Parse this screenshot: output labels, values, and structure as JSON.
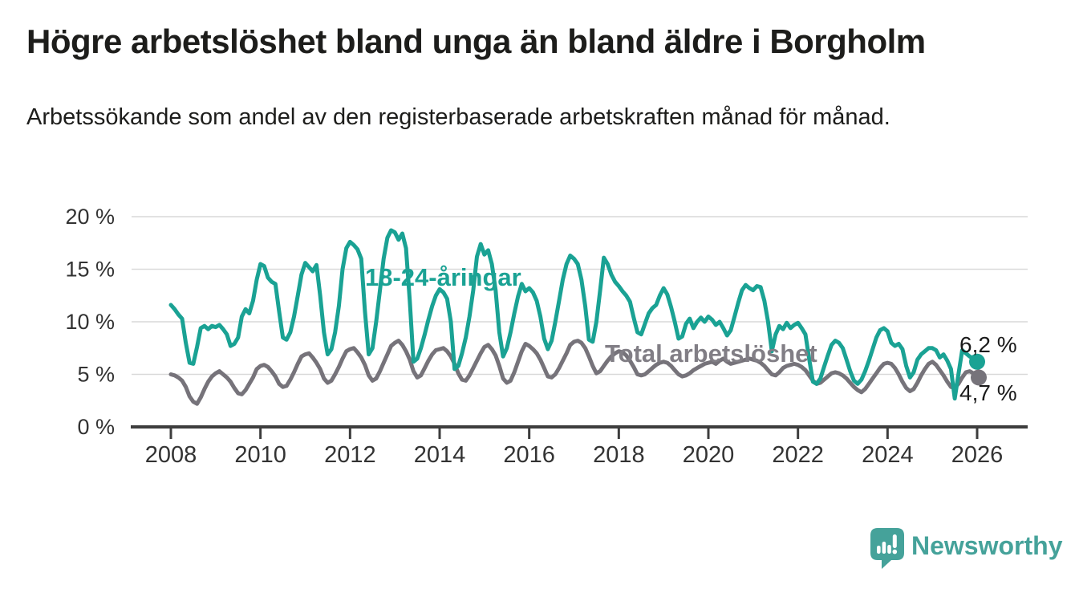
{
  "title": "Högre arbetslöshet bland unga än bland äldre i Borgholm",
  "subtitle": "Arbetssökande som andel av den registerbaserade arbetskraften månad för månad.",
  "logo": {
    "text": "Newsworthy",
    "icon": "bar-chart-speech-bubble-icon",
    "color": "#45a29a"
  },
  "colors": {
    "young_line": "#1aa294",
    "total_line": "#76737a",
    "total_label": "#817e85",
    "grid": "#d9d9d9",
    "axis": "#3d3d3d",
    "tick_text": "#333333",
    "annotation_text": "#1a1a1a"
  },
  "chart_data": {
    "type": "line",
    "title": "Högre arbetslöshet bland unga än bland äldre i Borgholm",
    "subtitle": "Arbetssökande som andel av den registerbaserade arbetskraften månad för månad.",
    "unit": "%",
    "frequency": "monthly",
    "x_start": "2008-01",
    "x_end": "2026-01",
    "xlabel": "",
    "ylabel": "",
    "ylim": [
      0,
      21
    ],
    "grid": true,
    "legend_position": "inline-labels",
    "xticks": [
      2008,
      2010,
      2012,
      2014,
      2016,
      2018,
      2020,
      2022,
      2024,
      2026
    ],
    "ytick_values": [
      0,
      5,
      10,
      15,
      20
    ],
    "ytick_labels": [
      "0 %",
      "5 %",
      "10 %",
      "15 %",
      "20 %"
    ],
    "series": [
      {
        "name": "18-24-åringar",
        "color": "#1aa294",
        "end_label": "6,2 %",
        "end_value": 6.2,
        "values": [
          11.6,
          11.2,
          10.7,
          10.3,
          8.0,
          6.1,
          6.0,
          7.6,
          9.4,
          9.6,
          9.3,
          9.6,
          9.5,
          9.7,
          9.3,
          8.8,
          7.7,
          7.9,
          8.5,
          10.5,
          11.2,
          10.8,
          12.0,
          14.0,
          15.5,
          15.3,
          14.2,
          13.8,
          13.6,
          11.0,
          8.5,
          8.3,
          9.0,
          10.5,
          12.5,
          14.5,
          15.6,
          15.2,
          14.8,
          15.4,
          12.5,
          9.0,
          6.9,
          7.4,
          9.0,
          11.5,
          15.0,
          17.0,
          17.6,
          17.3,
          16.9,
          16.0,
          11.0,
          6.9,
          7.5,
          10.0,
          13.0,
          16.0,
          18.0,
          18.7,
          18.5,
          17.8,
          18.4,
          17.0,
          12.0,
          6.2,
          6.5,
          7.5,
          8.8,
          10.2,
          11.5,
          12.5,
          13.1,
          12.8,
          12.2,
          10.0,
          5.5,
          5.8,
          7.0,
          8.5,
          10.5,
          13.0,
          16.2,
          17.4,
          16.4,
          16.8,
          15.5,
          13.0,
          9.0,
          6.7,
          7.5,
          9.0,
          10.8,
          12.4,
          13.6,
          12.9,
          13.2,
          12.8,
          12.0,
          10.5,
          8.4,
          7.4,
          8.2,
          10.0,
          12.0,
          14.0,
          15.5,
          16.3,
          16.0,
          15.5,
          14.0,
          11.5,
          8.3,
          8.1,
          10.0,
          13.0,
          16.1,
          15.5,
          14.5,
          13.8,
          13.4,
          12.9,
          12.5,
          11.9,
          10.4,
          9.0,
          8.8,
          9.8,
          10.8,
          11.3,
          11.6,
          12.5,
          13.2,
          12.6,
          11.4,
          10.0,
          8.4,
          8.6,
          9.8,
          10.3,
          9.4,
          10.0,
          10.4,
          10.0,
          10.5,
          10.2,
          9.7,
          10.0,
          9.4,
          8.7,
          9.2,
          10.5,
          11.8,
          13.0,
          13.5,
          13.2,
          13.0,
          13.4,
          13.3,
          12.0,
          10.0,
          7.2,
          8.8,
          9.6,
          9.3,
          9.9,
          9.4,
          9.7,
          9.9,
          9.4,
          8.8,
          6.5,
          4.3,
          4.1,
          4.6,
          5.7,
          6.8,
          7.8,
          8.2,
          8.0,
          7.5,
          6.4,
          5.3,
          4.4,
          4.1,
          4.5,
          5.3,
          6.3,
          7.4,
          8.5,
          9.2,
          9.4,
          9.1,
          8.0,
          7.7,
          7.9,
          7.4,
          5.8,
          4.7,
          5.2,
          6.4,
          6.9,
          7.2,
          7.5,
          7.5,
          7.3,
          6.6,
          6.9,
          6.3,
          5.5,
          2.7,
          5.0,
          7.3,
          7.0,
          6.7,
          6.5,
          6.2
        ]
      },
      {
        "name": "Total arbetslöshet",
        "color": "#76737a",
        "end_label": "4,7 %",
        "end_value": 4.7,
        "values": [
          5.0,
          4.9,
          4.7,
          4.4,
          3.8,
          2.9,
          2.4,
          2.2,
          2.8,
          3.6,
          4.3,
          4.8,
          5.1,
          5.3,
          5.0,
          4.7,
          4.3,
          3.7,
          3.2,
          3.1,
          3.5,
          4.1,
          4.7,
          5.5,
          5.8,
          5.9,
          5.7,
          5.3,
          4.8,
          4.1,
          3.8,
          3.9,
          4.5,
          5.2,
          6.0,
          6.7,
          6.9,
          7.0,
          6.6,
          6.1,
          5.5,
          4.6,
          4.2,
          4.4,
          5.0,
          5.7,
          6.5,
          7.2,
          7.4,
          7.5,
          7.1,
          6.6,
          5.9,
          4.9,
          4.4,
          4.6,
          5.3,
          6.1,
          6.9,
          7.7,
          8.0,
          8.2,
          7.8,
          7.2,
          6.4,
          5.3,
          4.7,
          4.9,
          5.6,
          6.3,
          6.9,
          7.3,
          7.4,
          7.5,
          7.2,
          6.7,
          6.0,
          5.1,
          4.5,
          4.4,
          4.9,
          5.6,
          6.3,
          7.0,
          7.6,
          7.8,
          7.4,
          6.8,
          5.8,
          4.6,
          4.2,
          4.4,
          5.2,
          6.2,
          7.2,
          7.9,
          7.7,
          7.4,
          7.0,
          6.4,
          5.6,
          4.8,
          4.7,
          5.0,
          5.6,
          6.3,
          7.0,
          7.8,
          8.1,
          8.2,
          8.0,
          7.5,
          6.7,
          5.8,
          5.1,
          5.3,
          5.8,
          6.3,
          6.7,
          7.0,
          7.2,
          7.1,
          6.8,
          6.3,
          5.7,
          5.0,
          4.9,
          5.0,
          5.3,
          5.6,
          5.9,
          6.1,
          6.2,
          6.1,
          5.8,
          5.4,
          5.0,
          4.8,
          4.9,
          5.1,
          5.4,
          5.6,
          5.8,
          6.0,
          6.1,
          6.2,
          6.0,
          6.3,
          6.5,
          6.2,
          6.0,
          6.1,
          6.2,
          6.3,
          6.4,
          6.5,
          6.4,
          6.3,
          6.1,
          5.8,
          5.4,
          5.0,
          4.9,
          5.2,
          5.6,
          5.8,
          5.9,
          6.0,
          5.9,
          5.7,
          5.4,
          4.9,
          4.4,
          4.1,
          4.2,
          4.5,
          4.8,
          5.1,
          5.2,
          5.1,
          4.9,
          4.6,
          4.2,
          3.8,
          3.5,
          3.3,
          3.6,
          4.1,
          4.6,
          5.1,
          5.6,
          6.0,
          6.1,
          6.0,
          5.6,
          5.0,
          4.3,
          3.7,
          3.4,
          3.6,
          4.2,
          4.9,
          5.5,
          6.0,
          6.2,
          5.9,
          5.4,
          4.9,
          4.3,
          3.8,
          3.7,
          4.1,
          4.7,
          5.2,
          5.3,
          5.1,
          4.7
        ]
      }
    ]
  }
}
